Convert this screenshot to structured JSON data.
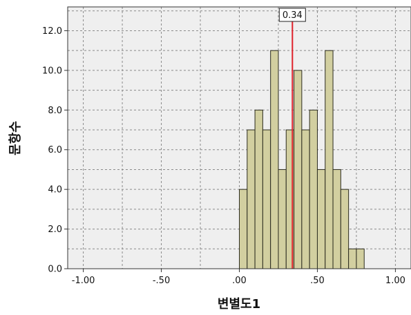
{
  "chart_data": {
    "type": "bar",
    "subtype": "histogram",
    "title": "",
    "xlabel": "변별도1",
    "ylabel": "문항수",
    "xlim": [
      -1.1,
      1.1
    ],
    "ylim": [
      0,
      13.2
    ],
    "x_ticks": [
      -1.0,
      -0.5,
      0.0,
      0.5,
      1.0
    ],
    "x_tick_labels": [
      "-1.00",
      "-.50",
      ".00",
      ".50",
      "1.00"
    ],
    "y_ticks": [
      0,
      2,
      4,
      6,
      8,
      10,
      12
    ],
    "y_tick_labels": [
      "0.0",
      "2.0",
      "4.0",
      "6.0",
      "8.0",
      "10.0",
      "12.0"
    ],
    "bin_width": 0.05,
    "bins": [
      {
        "start": 0.0,
        "end": 0.05,
        "count": 4
      },
      {
        "start": 0.05,
        "end": 0.1,
        "count": 7
      },
      {
        "start": 0.1,
        "end": 0.15,
        "count": 8
      },
      {
        "start": 0.15,
        "end": 0.2,
        "count": 7
      },
      {
        "start": 0.2,
        "end": 0.25,
        "count": 11
      },
      {
        "start": 0.25,
        "end": 0.3,
        "count": 5
      },
      {
        "start": 0.3,
        "end": 0.35,
        "count": 7
      },
      {
        "start": 0.35,
        "end": 0.4,
        "count": 10
      },
      {
        "start": 0.4,
        "end": 0.45,
        "count": 7
      },
      {
        "start": 0.45,
        "end": 0.5,
        "count": 8
      },
      {
        "start": 0.5,
        "end": 0.55,
        "count": 5
      },
      {
        "start": 0.55,
        "end": 0.6,
        "count": 11
      },
      {
        "start": 0.6,
        "end": 0.65,
        "count": 5
      },
      {
        "start": 0.65,
        "end": 0.7,
        "count": 4
      },
      {
        "start": 0.7,
        "end": 0.75,
        "count": 1
      },
      {
        "start": 0.75,
        "end": 0.8,
        "count": 1
      }
    ],
    "reference_line": {
      "value": 0.34,
      "label": "0.34",
      "color": "#e0202a"
    },
    "grid": true,
    "colors": {
      "bar_fill": "#d2cfa0",
      "bar_stroke": "#2a2a1e",
      "plot_bg": "#efefef",
      "grid": "#8a8a8a"
    }
  }
}
